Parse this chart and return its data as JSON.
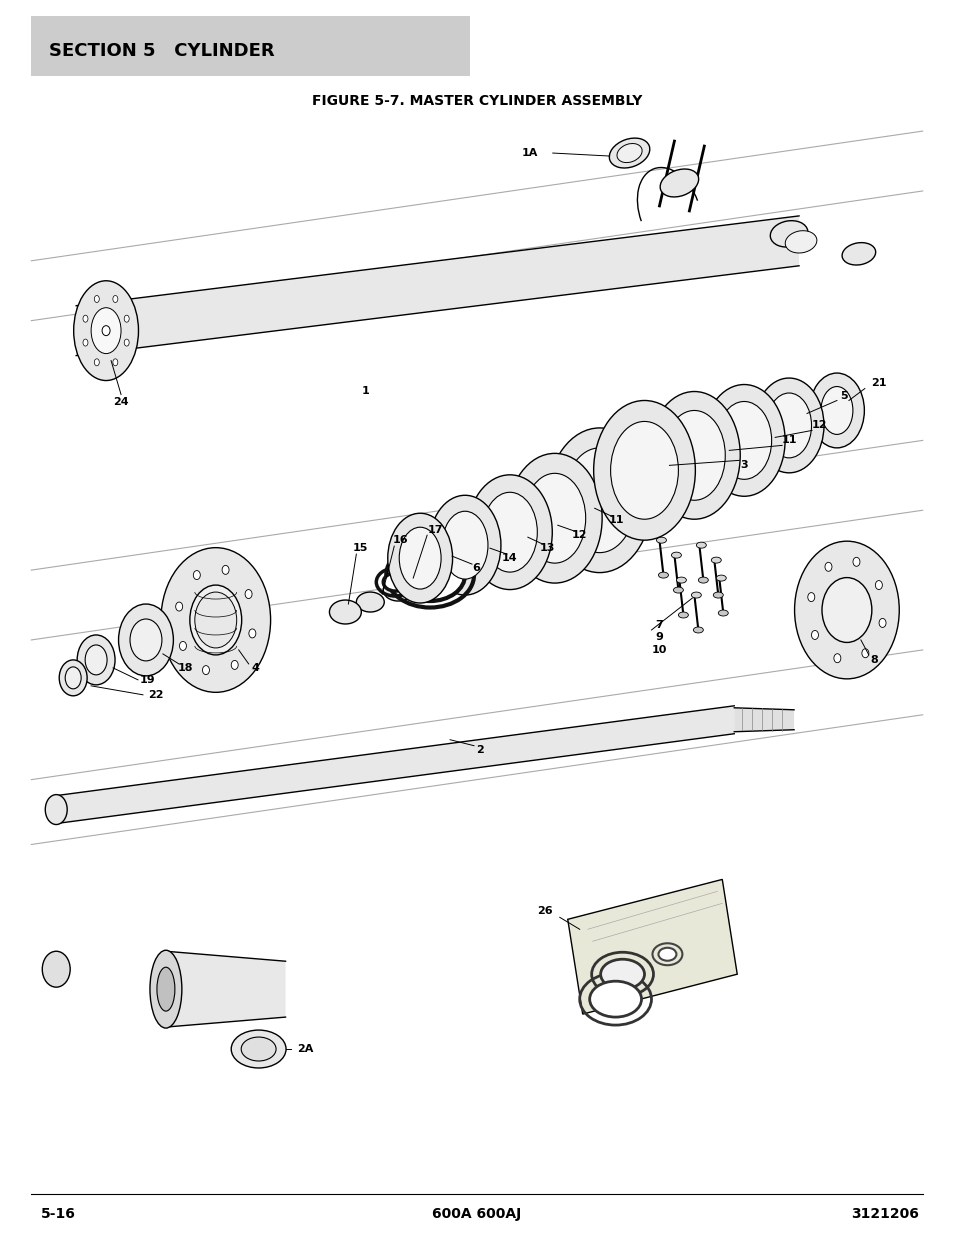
{
  "title": "FIGURE 5-7. MASTER CYLINDER ASSEMBLY",
  "section_header": "SECTION 5   CYLINDER",
  "section_bg_color": "#cccccc",
  "page_left": "5-16",
  "page_center": "600A 600AJ",
  "page_right": "3121206",
  "bg_color": "#ffffff",
  "line_color": "#000000",
  "title_fontsize": 10,
  "header_fontsize": 13,
  "footer_fontsize": 10,
  "label_fontsize": 8,
  "shelf_color": "#888888",
  "part_color": "#e8e8e8",
  "oring_color": "#222222"
}
